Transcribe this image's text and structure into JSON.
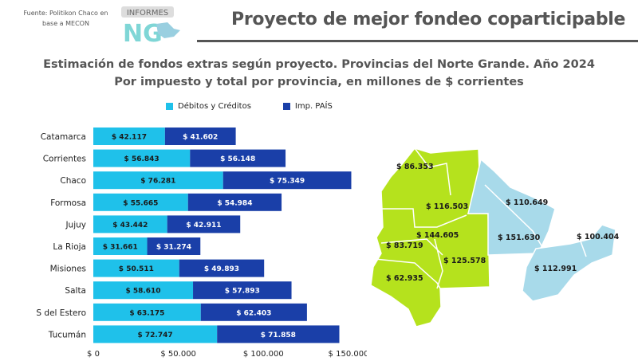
{
  "header": {
    "source": "Fuente: Politikon Chaco en base a MECON",
    "logo_text": "INFORMES NG",
    "title": "Proyecto de mejor fondeo coparticipable"
  },
  "subtitle": {
    "line1": "Estimación de fondos extras según proyecto. Provincias del Norte Grande. Año 2024",
    "line2": "Por impuesto y total por provincia, en millones de $ corrientes"
  },
  "colors": {
    "debitos": "#1fc1ea",
    "pais": "#1a3fa8",
    "map_green": "#b5e21d",
    "map_blue": "#a8daea"
  },
  "chart_data": {
    "type": "bar",
    "orientation": "horizontal",
    "stacked": true,
    "categories": [
      "Catamarca",
      "Corrientes",
      "Chaco",
      "Formosa",
      "Jujuy",
      "La Rioja",
      "Misiones",
      "Salta",
      "S del Estero",
      "Tucumán"
    ],
    "series": [
      {
        "name": "Débitos y Créditos",
        "values": [
          42117,
          56843,
          76281,
          55665,
          43442,
          31661,
          50511,
          58610,
          63175,
          72747
        ],
        "labels": [
          "$ 42.117",
          "$ 56.843",
          "$ 76.281",
          "$ 55.665",
          "$ 43.442",
          "$ 31.661",
          "$ 50.511",
          "$ 58.610",
          "$ 63.175",
          "$ 72.747"
        ]
      },
      {
        "name": "Imp. PAÍS",
        "values": [
          41602,
          56148,
          75349,
          54984,
          42911,
          31274,
          49893,
          57893,
          62403,
          71858
        ],
        "labels": [
          "$ 41.602",
          "$ 56.148",
          "$ 75.349",
          "$ 54.984",
          "$ 42.911",
          "$ 31.274",
          "$ 49.893",
          "$ 57.893",
          "$ 62.403",
          "$ 71.858"
        ]
      }
    ],
    "xlim": [
      0,
      150000
    ],
    "xticks": [
      0,
      50000,
      100000,
      150000
    ],
    "xtick_labels": [
      "$ 0",
      "$ 50.000",
      "$ 100.000",
      "$ 150.000"
    ],
    "legend": "top"
  },
  "map": {
    "labels": [
      {
        "text": "$ 86.353",
        "group": "green"
      },
      {
        "text": "$ 116.503",
        "group": "green"
      },
      {
        "text": "$ 144.605",
        "group": "green"
      },
      {
        "text": "$ 83.719",
        "group": "green"
      },
      {
        "text": "$ 125.578",
        "group": "green"
      },
      {
        "text": "$ 62.935",
        "group": "green"
      },
      {
        "text": "$ 110.649",
        "group": "blue"
      },
      {
        "text": "$ 151.630",
        "group": "blue"
      },
      {
        "text": "$ 100.404",
        "group": "blue"
      },
      {
        "text": "$ 112.991",
        "group": "blue"
      }
    ]
  }
}
